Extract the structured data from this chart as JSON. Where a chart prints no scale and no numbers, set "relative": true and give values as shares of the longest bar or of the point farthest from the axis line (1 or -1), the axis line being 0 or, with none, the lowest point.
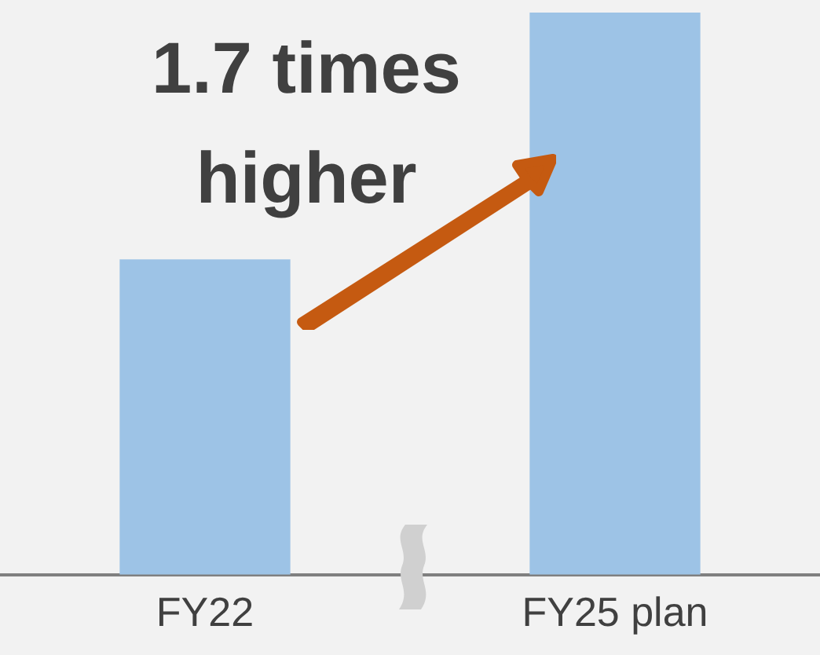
{
  "chart_data": {
    "type": "bar",
    "relative": true,
    "categories": [
      "FY22",
      "FY25 plan"
    ],
    "values": [
      0.56,
      1
    ],
    "color": "#9dc3e6",
    "annotations": [
      "1.7 times higher"
    ],
    "grid": false,
    "legend": false
  }
}
